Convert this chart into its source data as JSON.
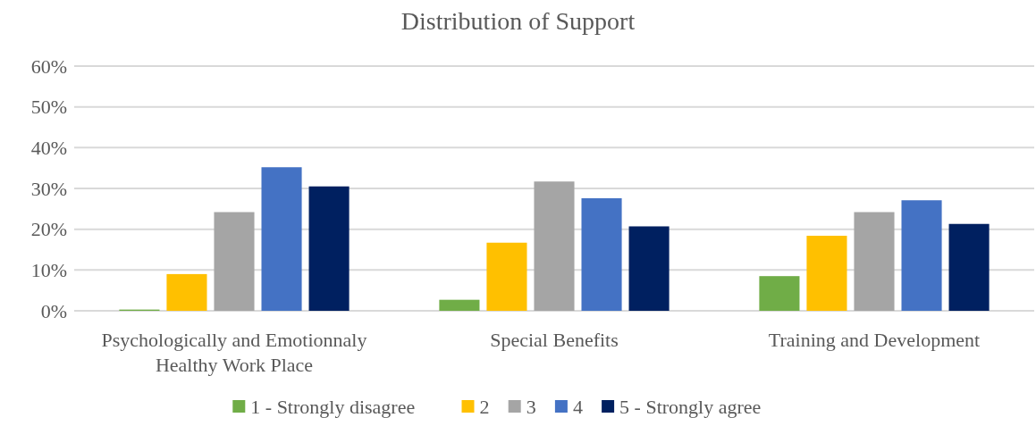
{
  "chart_data": {
    "type": "bar",
    "title": "Distribution of Support",
    "categories": [
      "Psychologically and Emotionnaly Healthy Work Place",
      "Special Benefits",
      "Training and Development"
    ],
    "series": [
      {
        "name": "1 - Strongly disagree",
        "color": "#70ad47",
        "values": [
          0.3,
          2.7,
          8.5
        ]
      },
      {
        "name": "2",
        "color": "#ffc000",
        "values": [
          9.0,
          16.7,
          18.4
        ]
      },
      {
        "name": "3",
        "color": "#a5a5a5",
        "values": [
          24.2,
          31.7,
          24.2
        ]
      },
      {
        "name": "4",
        "color": "#4472c4",
        "values": [
          35.2,
          27.6,
          27.1
        ]
      },
      {
        "name": "5 - Strongly agree",
        "color": "#002060",
        "values": [
          30.5,
          20.7,
          21.3
        ]
      }
    ],
    "ylim": [
      0,
      60
    ],
    "yticks": [
      {
        "value": 0,
        "label": "0%"
      },
      {
        "value": 10,
        "label": "10%"
      },
      {
        "value": 20,
        "label": "20%"
      },
      {
        "value": 30,
        "label": "30%"
      },
      {
        "value": 40,
        "label": "40%"
      },
      {
        "value": 50,
        "label": "50%"
      },
      {
        "value": 60,
        "label": "60%"
      }
    ],
    "grid": "y",
    "legend": "bottom"
  }
}
